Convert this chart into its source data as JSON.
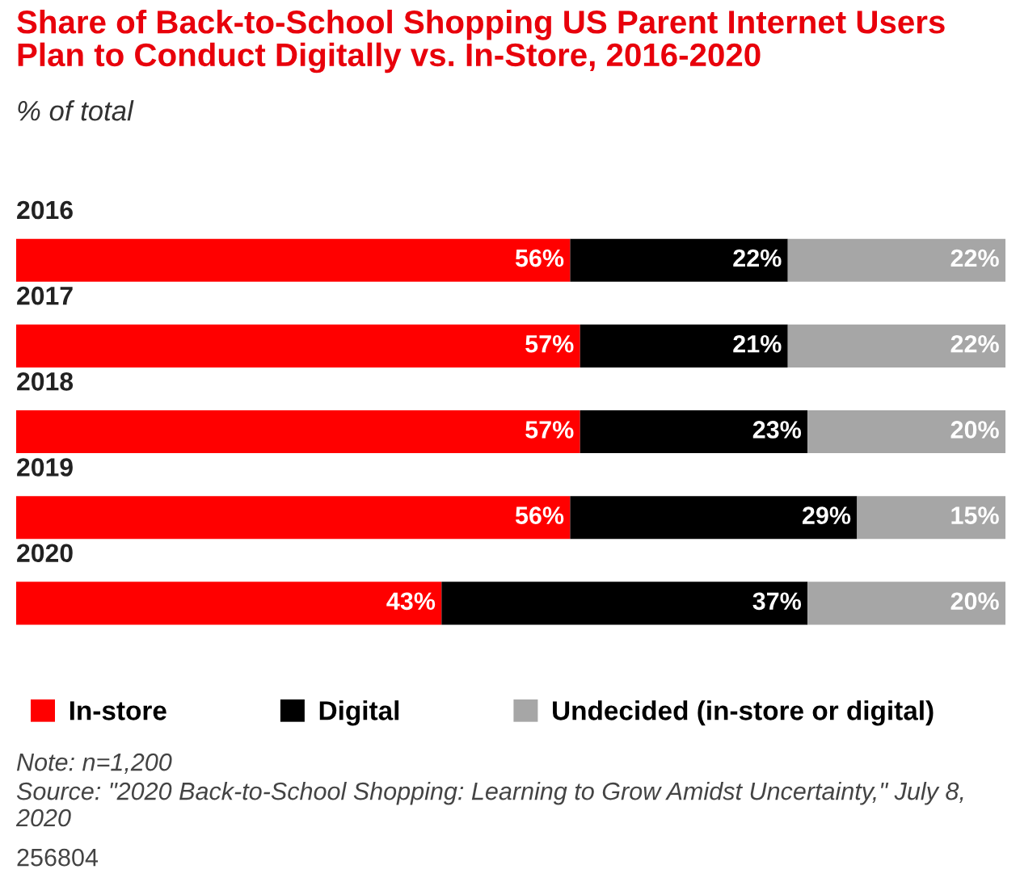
{
  "chart_data": {
    "type": "bar",
    "orientation": "horizontal",
    "stacked": true,
    "title": "Share of Back-to-School Shopping US Parent Internet Users Plan to Conduct Digitally vs. In-Store, 2016-2020",
    "subtitle": "% of total",
    "categories": [
      "2016",
      "2017",
      "2018",
      "2019",
      "2020"
    ],
    "series": [
      {
        "name": "In-store",
        "color": "#ff0000",
        "values": [
          56,
          57,
          57,
          56,
          43
        ],
        "value_labels": [
          "56%",
          "57%",
          "57%",
          "56%",
          "43%"
        ]
      },
      {
        "name": "Digital",
        "color": "#000000",
        "values": [
          22,
          21,
          23,
          29,
          37
        ],
        "value_labels": [
          "22%",
          "21%",
          "23%",
          "29%",
          "37%"
        ]
      },
      {
        "name": "Undecided (in-store or digital)",
        "color": "#a6a6a6",
        "values": [
          22,
          22,
          20,
          15,
          20
        ],
        "value_labels": [
          "22%",
          "22%",
          "20%",
          "15%",
          "20%"
        ]
      }
    ],
    "legend": "bottom",
    "annotations": [
      "Note: n=1,200",
      "Source: \"2020 Back-to-School Shopping: Learning to Grow Amidst Uncertainty,\" July 8, 2020",
      "256804"
    ]
  }
}
